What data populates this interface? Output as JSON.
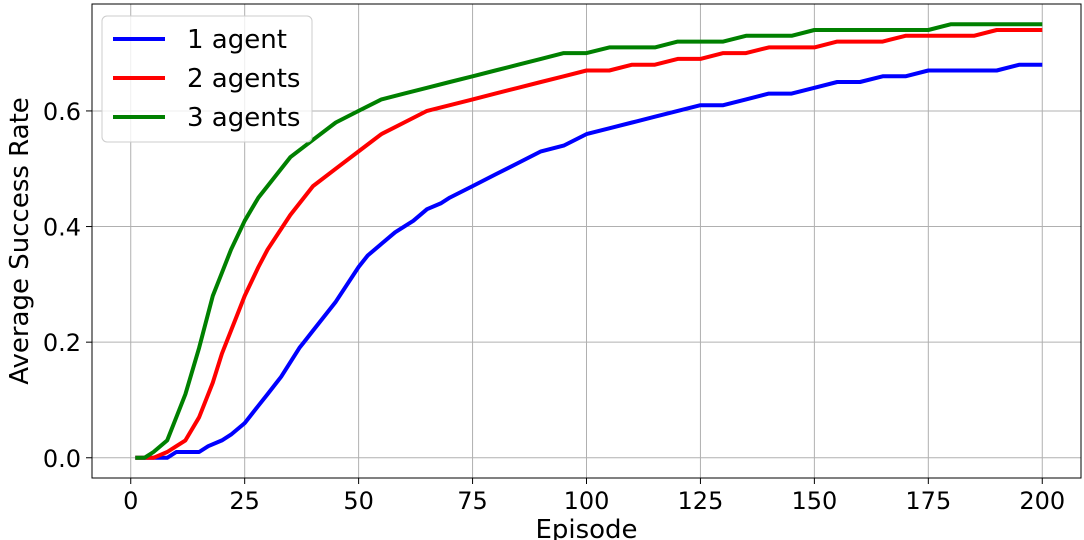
{
  "chart_data": {
    "type": "line",
    "xlabel": "Episode",
    "ylabel": "Average Success Rate",
    "xlim": [
      -8.5,
      208.5
    ],
    "ylim": [
      -0.035,
      0.785
    ],
    "xticks": [
      0,
      25,
      50,
      75,
      100,
      125,
      150,
      175,
      200
    ],
    "xtick_labels": [
      "0",
      "25",
      "50",
      "75",
      "100",
      "125",
      "150",
      "175",
      "200"
    ],
    "yticks": [
      0.0,
      0.2,
      0.4,
      0.6
    ],
    "ytick_labels": [
      "0.0",
      "0.2",
      "0.4",
      "0.6"
    ],
    "grid": true,
    "legend_position": "top-left",
    "series": [
      {
        "name": "1 agent",
        "color": "#0000ff",
        "x": [
          1,
          3,
          5,
          8,
          10,
          15,
          17,
          20,
          22,
          25,
          28,
          30,
          33,
          37,
          38,
          40,
          45,
          50,
          52,
          55,
          58,
          62,
          65,
          68,
          70,
          75,
          80,
          85,
          90,
          95,
          100,
          105,
          110,
          115,
          120,
          125,
          130,
          135,
          140,
          145,
          150,
          155,
          160,
          165,
          170,
          175,
          180,
          185,
          190,
          195,
          200
        ],
        "values": [
          0.0,
          0.0,
          0.0,
          0.0,
          0.01,
          0.01,
          0.02,
          0.03,
          0.04,
          0.06,
          0.09,
          0.11,
          0.14,
          0.19,
          0.2,
          0.22,
          0.27,
          0.33,
          0.35,
          0.37,
          0.39,
          0.41,
          0.43,
          0.44,
          0.45,
          0.47,
          0.49,
          0.51,
          0.53,
          0.54,
          0.56,
          0.57,
          0.58,
          0.59,
          0.6,
          0.61,
          0.61,
          0.62,
          0.63,
          0.63,
          0.64,
          0.65,
          0.65,
          0.66,
          0.66,
          0.67,
          0.67,
          0.67,
          0.67,
          0.68,
          0.68
        ]
      },
      {
        "name": "2 agents",
        "color": "#ff0000",
        "x": [
          1,
          3,
          5,
          8,
          10,
          12,
          15,
          18,
          20,
          23,
          25,
          28,
          30,
          35,
          40,
          45,
          50,
          55,
          60,
          65,
          70,
          75,
          80,
          85,
          90,
          95,
          100,
          105,
          110,
          115,
          120,
          125,
          130,
          135,
          140,
          145,
          150,
          155,
          160,
          165,
          170,
          175,
          180,
          185,
          190,
          195,
          200
        ],
        "values": [
          0.0,
          0.0,
          0.0,
          0.01,
          0.02,
          0.03,
          0.07,
          0.13,
          0.18,
          0.24,
          0.28,
          0.33,
          0.36,
          0.42,
          0.47,
          0.5,
          0.53,
          0.56,
          0.58,
          0.6,
          0.61,
          0.62,
          0.63,
          0.64,
          0.65,
          0.66,
          0.67,
          0.67,
          0.68,
          0.68,
          0.69,
          0.69,
          0.7,
          0.7,
          0.71,
          0.71,
          0.71,
          0.72,
          0.72,
          0.72,
          0.73,
          0.73,
          0.73,
          0.73,
          0.74,
          0.74,
          0.74
        ]
      },
      {
        "name": "3 agents",
        "color": "#008000",
        "x": [
          1,
          3,
          5,
          8,
          10,
          12,
          15,
          18,
          20,
          22,
          25,
          28,
          30,
          35,
          40,
          45,
          50,
          55,
          60,
          65,
          70,
          75,
          80,
          85,
          90,
          95,
          100,
          105,
          110,
          115,
          120,
          125,
          130,
          135,
          140,
          145,
          150,
          155,
          160,
          165,
          170,
          175,
          180,
          185,
          190,
          195,
          200
        ],
        "values": [
          0.0,
          0.0,
          0.01,
          0.03,
          0.07,
          0.11,
          0.19,
          0.28,
          0.32,
          0.36,
          0.41,
          0.45,
          0.47,
          0.52,
          0.55,
          0.58,
          0.6,
          0.62,
          0.63,
          0.64,
          0.65,
          0.66,
          0.67,
          0.68,
          0.69,
          0.7,
          0.7,
          0.71,
          0.71,
          0.71,
          0.72,
          0.72,
          0.72,
          0.73,
          0.73,
          0.73,
          0.74,
          0.74,
          0.74,
          0.74,
          0.74,
          0.74,
          0.75,
          0.75,
          0.75,
          0.75,
          0.75
        ]
      }
    ]
  }
}
